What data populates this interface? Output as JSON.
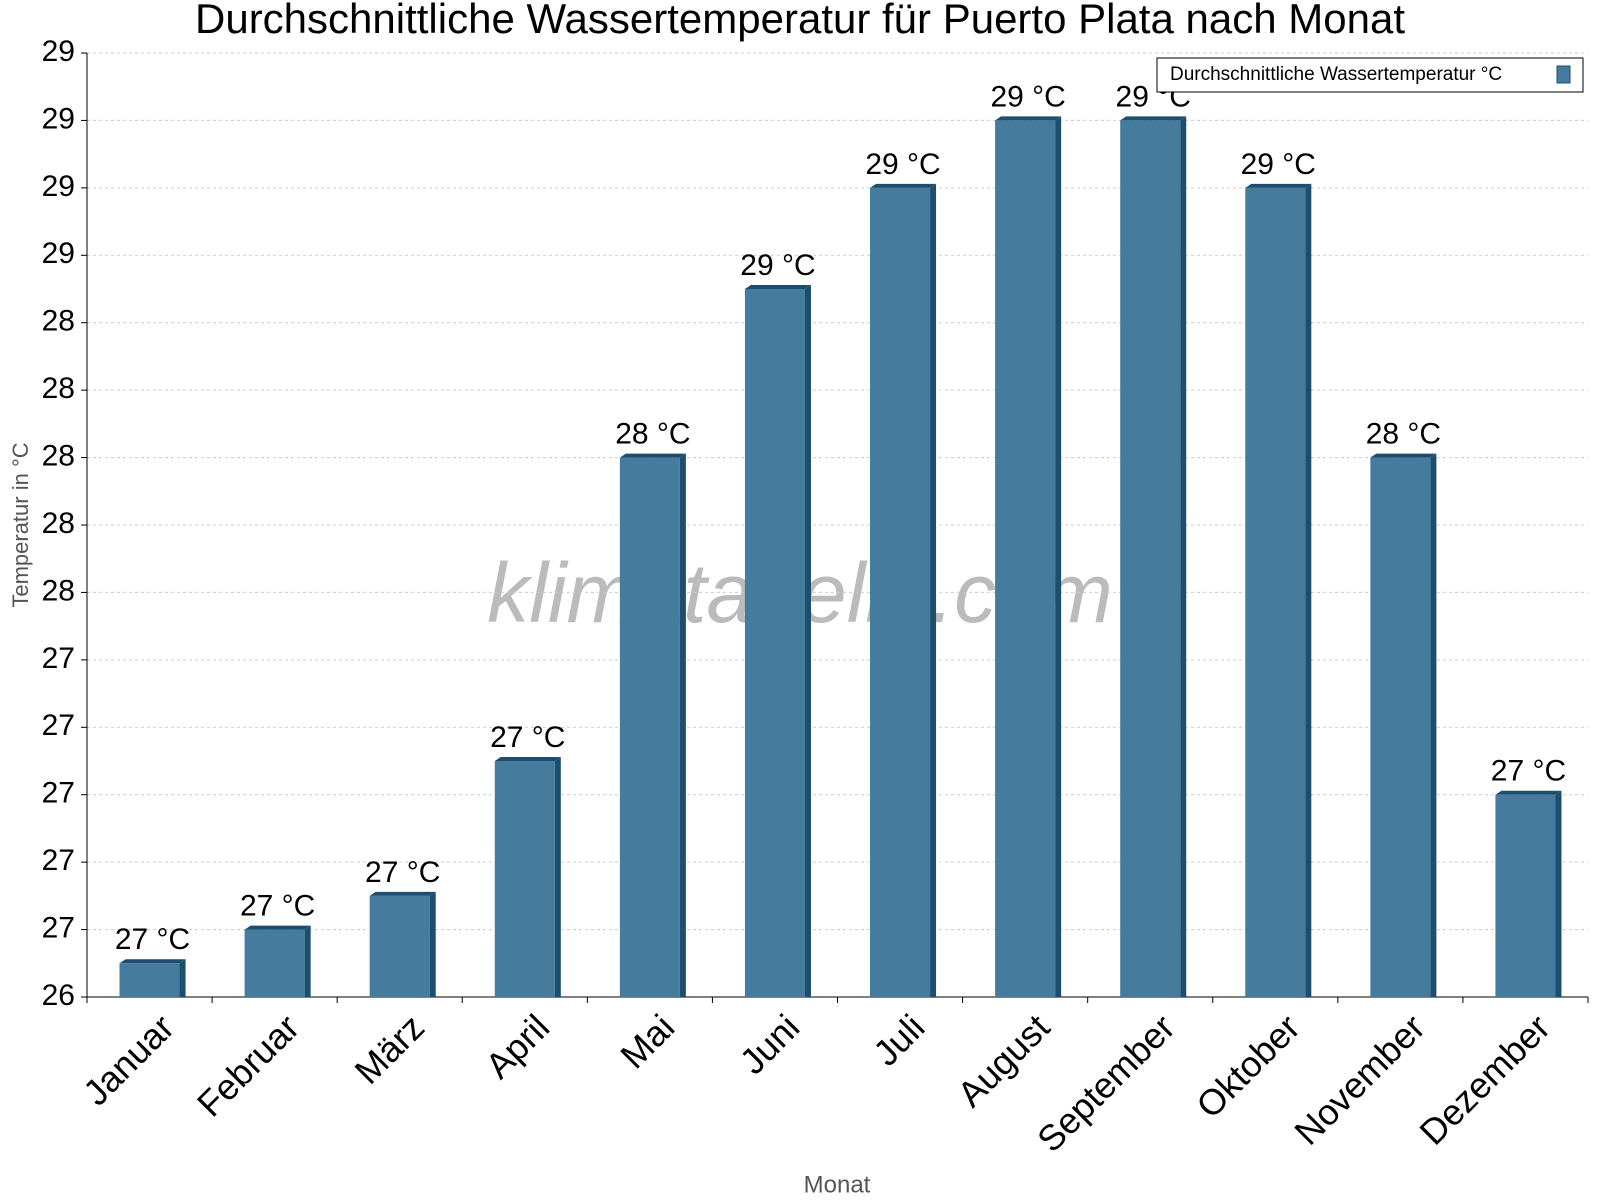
{
  "chart_data": {
    "type": "bar",
    "title": "Durchschnittliche Wassertemperatur für Puerto Plata nach Monat",
    "x_label": "Monat",
    "y_label": "Temperatur in °C",
    "watermark": "klimatabelle.com",
    "categories": [
      "Januar",
      "Februar",
      "März",
      "April",
      "Mai",
      "Juni",
      "Juli",
      "August",
      "September",
      "Oktober",
      "November",
      "Dezember"
    ],
    "series": [
      {
        "name": "Durchschnittliche Wassertemperatur °C",
        "color": "#457b9d",
        "values": [
          26.5,
          26.6,
          26.7,
          27.1,
          28.0,
          28.5,
          28.8,
          29.0,
          29.0,
          28.8,
          28.0,
          27.0
        ],
        "value_labels": [
          "27 °C",
          "27 °C",
          "27 °C",
          "27 °C",
          "28 °C",
          "29 °C",
          "29 °C",
          "29 °C",
          "29 °C",
          "29 °C",
          "28 °C",
          "27 °C"
        ]
      }
    ],
    "ylim": [
      26.4,
      29.2
    ],
    "yticks": [
      {
        "value": 26.4,
        "label": "26"
      },
      {
        "value": 26.6,
        "label": "27"
      },
      {
        "value": 26.8,
        "label": "27"
      },
      {
        "value": 27.0,
        "label": "27"
      },
      {
        "value": 27.2,
        "label": "27"
      },
      {
        "value": 27.4,
        "label": "27"
      },
      {
        "value": 27.6,
        "label": "28"
      },
      {
        "value": 27.8,
        "label": "28"
      },
      {
        "value": 28.0,
        "label": "28"
      },
      {
        "value": 28.2,
        "label": "28"
      },
      {
        "value": 28.4,
        "label": "28"
      },
      {
        "value": 28.6,
        "label": "29"
      },
      {
        "value": 28.8,
        "label": "29"
      },
      {
        "value": 29.0,
        "label": "29"
      },
      {
        "value": 29.2,
        "label": "29"
      }
    ],
    "grid": true,
    "legend": "top-right"
  }
}
